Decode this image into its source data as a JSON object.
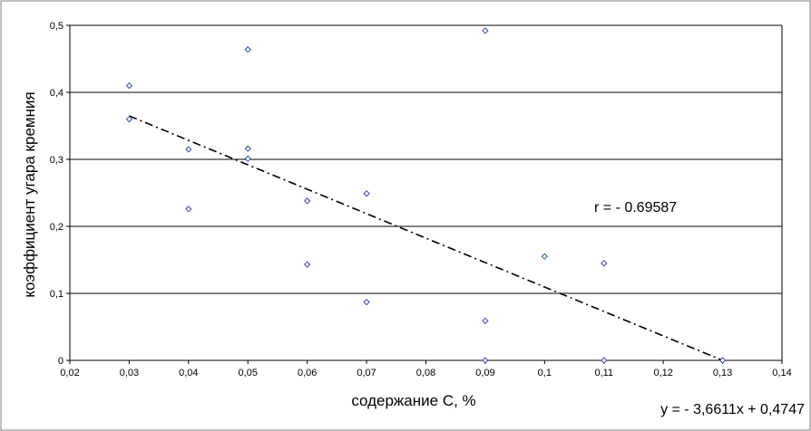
{
  "chart_data": {
    "type": "scatter",
    "xlabel": "содержание C, %",
    "ylabel": "коэффициент угара кремния",
    "xlim": [
      0.02,
      0.14
    ],
    "ylim": [
      0,
      0.5
    ],
    "x_ticks": [
      "0,02",
      "0,03",
      "0,04",
      "0,05",
      "0,06",
      "0,07",
      "0,08",
      "0,09",
      "0,1",
      "0,11",
      "0,12",
      "0,13",
      "0,14"
    ],
    "y_ticks": [
      "0",
      "0,1",
      "0,2",
      "0,3",
      "0,4",
      "0,5"
    ],
    "grid": "horizontal major gridlines",
    "point_color": "#1f3fa0",
    "series": [
      {
        "marker": "diamond",
        "points": [
          {
            "x": 0.03,
            "y": 0.41
          },
          {
            "x": 0.03,
            "y": 0.36
          },
          {
            "x": 0.04,
            "y": 0.315
          },
          {
            "x": 0.04,
            "y": 0.226
          },
          {
            "x": 0.05,
            "y": 0.464
          },
          {
            "x": 0.05,
            "y": 0.316
          },
          {
            "x": 0.05,
            "y": 0.301
          },
          {
            "x": 0.06,
            "y": 0.238
          },
          {
            "x": 0.06,
            "y": 0.143
          },
          {
            "x": 0.07,
            "y": 0.249
          },
          {
            "x": 0.07,
            "y": 0.087
          },
          {
            "x": 0.09,
            "y": 0.492
          },
          {
            "x": 0.09,
            "y": 0.059
          },
          {
            "x": 0.09,
            "y": 0.0
          },
          {
            "x": 0.1,
            "y": 0.155
          },
          {
            "x": 0.11,
            "y": 0.145
          },
          {
            "x": 0.11,
            "y": 0.0
          },
          {
            "x": 0.13,
            "y": 0.0
          }
        ]
      }
    ],
    "trendline": {
      "type": "linear",
      "slope": -3.6611,
      "intercept": 0.4747,
      "x_range": [
        0.03,
        0.13
      ],
      "style": "dash-dot"
    },
    "annotations": {
      "correlation": "r = - 0.69587",
      "equation": "y = - 3,6611x + 0,4747"
    }
  }
}
